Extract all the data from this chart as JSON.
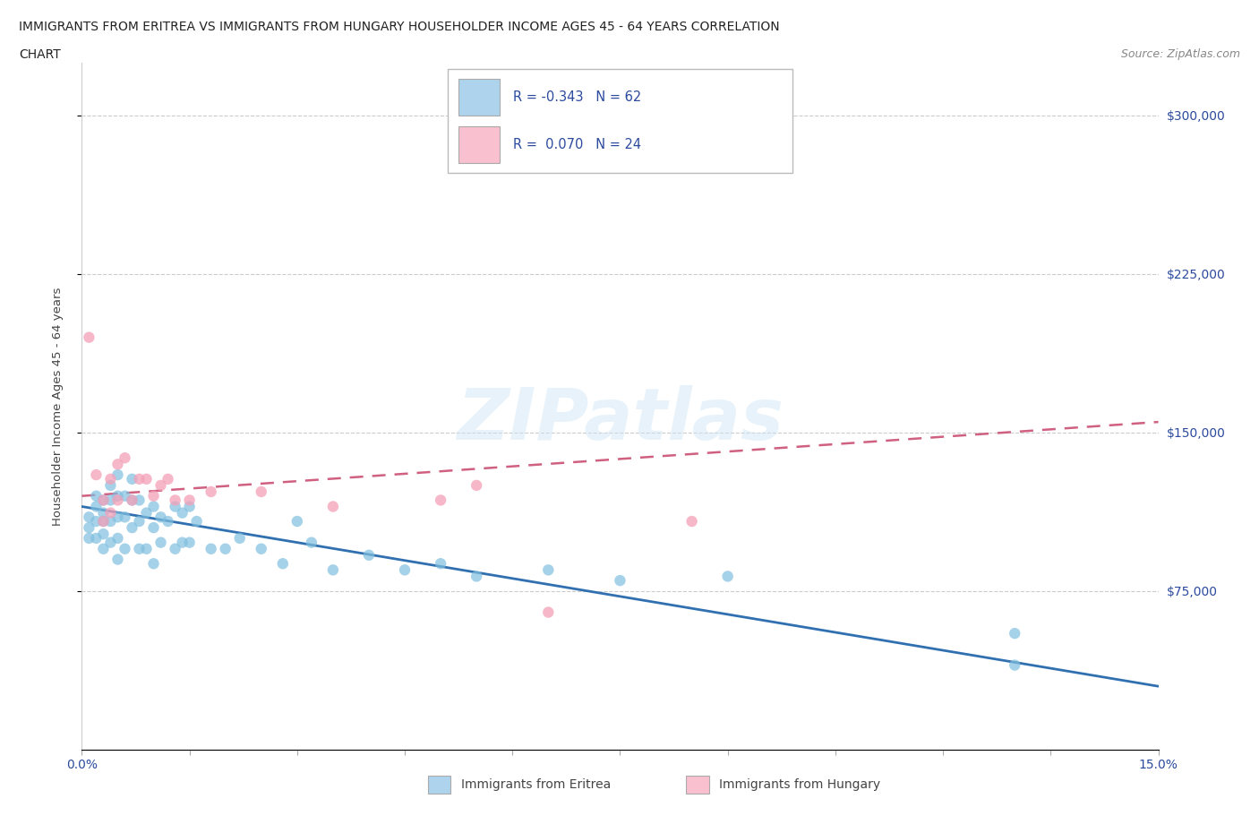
{
  "title_line1": "IMMIGRANTS FROM ERITREA VS IMMIGRANTS FROM HUNGARY HOUSEHOLDER INCOME AGES 45 - 64 YEARS CORRELATION",
  "title_line2": "CHART",
  "source_text": "Source: ZipAtlas.com",
  "ylabel": "Householder Income Ages 45 - 64 years",
  "xlim": [
    0.0,
    0.15
  ],
  "ylim": [
    0,
    325000
  ],
  "xticks": [
    0.0,
    0.015,
    0.03,
    0.045,
    0.06,
    0.075,
    0.09,
    0.105,
    0.12,
    0.135,
    0.15
  ],
  "xticklabels": [
    "0.0%",
    "",
    "",
    "",
    "",
    "",
    "",
    "",
    "",
    "",
    "15.0%"
  ],
  "ytick_positions": [
    75000,
    150000,
    225000,
    300000
  ],
  "ytick_labels": [
    "$75,000",
    "$150,000",
    "$225,000",
    "$300,000"
  ],
  "eritrea_color": "#7fbfdf",
  "hungary_color": "#f4a0b8",
  "legend_box_color_eritrea": "#aed4ed",
  "legend_box_color_hungary": "#f9c0d0",
  "r_eritrea": -0.343,
  "n_eritrea": 62,
  "r_hungary": 0.07,
  "n_hungary": 24,
  "watermark": "ZIPatlas",
  "eritrea_x": [
    0.001,
    0.001,
    0.001,
    0.002,
    0.002,
    0.002,
    0.002,
    0.003,
    0.003,
    0.003,
    0.003,
    0.003,
    0.004,
    0.004,
    0.004,
    0.004,
    0.005,
    0.005,
    0.005,
    0.005,
    0.005,
    0.006,
    0.006,
    0.006,
    0.007,
    0.007,
    0.007,
    0.008,
    0.008,
    0.008,
    0.009,
    0.009,
    0.01,
    0.01,
    0.01,
    0.011,
    0.011,
    0.012,
    0.013,
    0.013,
    0.014,
    0.014,
    0.015,
    0.015,
    0.016,
    0.018,
    0.02,
    0.022,
    0.025,
    0.028,
    0.03,
    0.032,
    0.035,
    0.04,
    0.045,
    0.05,
    0.055,
    0.065,
    0.075,
    0.09,
    0.13,
    0.13
  ],
  "eritrea_y": [
    110000,
    105000,
    100000,
    120000,
    115000,
    108000,
    100000,
    118000,
    112000,
    108000,
    102000,
    95000,
    125000,
    118000,
    108000,
    98000,
    130000,
    120000,
    110000,
    100000,
    90000,
    120000,
    110000,
    95000,
    128000,
    118000,
    105000,
    118000,
    108000,
    95000,
    112000,
    95000,
    115000,
    105000,
    88000,
    110000,
    98000,
    108000,
    115000,
    95000,
    112000,
    98000,
    115000,
    98000,
    108000,
    95000,
    95000,
    100000,
    95000,
    88000,
    108000,
    98000,
    85000,
    92000,
    85000,
    88000,
    82000,
    85000,
    80000,
    82000,
    55000,
    40000
  ],
  "hungary_x": [
    0.001,
    0.002,
    0.003,
    0.003,
    0.004,
    0.004,
    0.005,
    0.005,
    0.006,
    0.007,
    0.008,
    0.009,
    0.01,
    0.011,
    0.012,
    0.013,
    0.015,
    0.018,
    0.025,
    0.035,
    0.05,
    0.055,
    0.065,
    0.085
  ],
  "hungary_y": [
    195000,
    130000,
    118000,
    108000,
    128000,
    112000,
    135000,
    118000,
    138000,
    118000,
    128000,
    128000,
    120000,
    125000,
    128000,
    118000,
    118000,
    122000,
    122000,
    115000,
    118000,
    125000,
    65000,
    108000
  ],
  "bg_color": "#ffffff",
  "text_color": "#2c4a9e",
  "trendline_eritrea_color": "#3070b0",
  "trendline_hungary_color": "#d06080"
}
